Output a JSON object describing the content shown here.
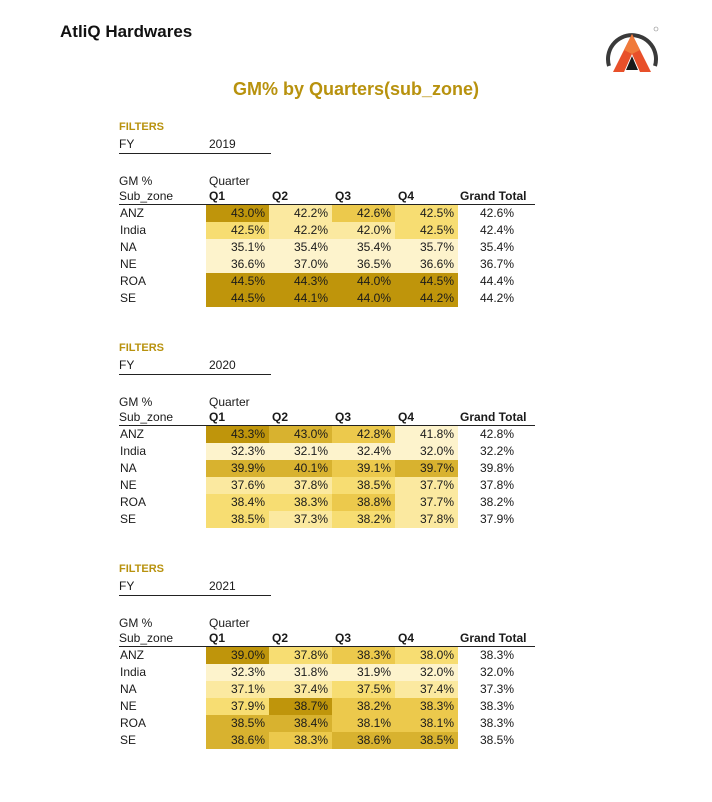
{
  "brand": "AtliQ Hardwares",
  "report_title": "GM% by Quarters(sub_zone)",
  "colors": {
    "accent": "#b8920e",
    "heat": [
      "#fdf3cc",
      "#fbe9a0",
      "#f7dd72",
      "#ecc94c",
      "#d8b22f",
      "#bf950b"
    ]
  },
  "labels": {
    "filters": "FILTERS",
    "fy": "FY",
    "gm": "GM %",
    "quarter": "Quarter",
    "sub_zone": "Sub_zone",
    "grand_total": "Grand Total",
    "quarters": [
      "Q1",
      "Q2",
      "Q3",
      "Q4"
    ]
  },
  "tables": [
    {
      "fy": "2019",
      "rows": [
        {
          "name": "ANZ",
          "q": [
            "43.0%",
            "42.2%",
            "42.6%",
            "42.5%"
          ],
          "shade": [
            5,
            1,
            3,
            2
          ],
          "total": "42.6%"
        },
        {
          "name": "India",
          "q": [
            "42.5%",
            "42.2%",
            "42.0%",
            "42.5%"
          ],
          "shade": [
            2,
            1,
            1,
            2
          ],
          "total": "42.4%"
        },
        {
          "name": "NA",
          "q": [
            "35.1%",
            "35.4%",
            "35.4%",
            "35.7%"
          ],
          "shade": [
            0,
            0,
            0,
            0
          ],
          "total": "35.4%"
        },
        {
          "name": "NE",
          "q": [
            "36.6%",
            "37.0%",
            "36.5%",
            "36.6%"
          ],
          "shade": [
            0,
            0,
            0,
            0
          ],
          "total": "36.7%"
        },
        {
          "name": "ROA",
          "q": [
            "44.5%",
            "44.3%",
            "44.0%",
            "44.5%"
          ],
          "shade": [
            5,
            5,
            5,
            5
          ],
          "total": "44.4%"
        },
        {
          "name": "SE",
          "q": [
            "44.5%",
            "44.1%",
            "44.0%",
            "44.2%"
          ],
          "shade": [
            5,
            5,
            5,
            5
          ],
          "total": "44.2%"
        }
      ]
    },
    {
      "fy": "2020",
      "rows": [
        {
          "name": "ANZ",
          "q": [
            "43.3%",
            "43.0%",
            "42.8%",
            "41.8%"
          ],
          "shade": [
            5,
            4,
            3,
            0
          ],
          "total": "42.8%"
        },
        {
          "name": "India",
          "q": [
            "32.3%",
            "32.1%",
            "32.4%",
            "32.0%"
          ],
          "shade": [
            0,
            0,
            0,
            0
          ],
          "total": "32.2%"
        },
        {
          "name": "NA",
          "q": [
            "39.9%",
            "40.1%",
            "39.1%",
            "39.7%"
          ],
          "shade": [
            4,
            4,
            3,
            4
          ],
          "total": "39.8%"
        },
        {
          "name": "NE",
          "q": [
            "37.6%",
            "37.8%",
            "38.5%",
            "37.7%"
          ],
          "shade": [
            1,
            1,
            2,
            1
          ],
          "total": "37.8%"
        },
        {
          "name": "ROA",
          "q": [
            "38.4%",
            "38.3%",
            "38.8%",
            "37.7%"
          ],
          "shade": [
            2,
            2,
            3,
            1
          ],
          "total": "38.2%"
        },
        {
          "name": "SE",
          "q": [
            "38.5%",
            "37.3%",
            "38.2%",
            "37.8%"
          ],
          "shade": [
            2,
            1,
            2,
            1
          ],
          "total": "37.9%"
        }
      ]
    },
    {
      "fy": "2021",
      "rows": [
        {
          "name": "ANZ",
          "q": [
            "39.0%",
            "37.8%",
            "38.3%",
            "38.0%"
          ],
          "shade": [
            5,
            2,
            3,
            2
          ],
          "total": "38.3%"
        },
        {
          "name": "India",
          "q": [
            "32.3%",
            "31.8%",
            "31.9%",
            "32.0%"
          ],
          "shade": [
            0,
            0,
            0,
            0
          ],
          "total": "32.0%"
        },
        {
          "name": "NA",
          "q": [
            "37.1%",
            "37.4%",
            "37.5%",
            "37.4%"
          ],
          "shade": [
            1,
            1,
            2,
            1
          ],
          "total": "37.3%"
        },
        {
          "name": "NE",
          "q": [
            "37.9%",
            "38.7%",
            "38.2%",
            "38.3%"
          ],
          "shade": [
            2,
            5,
            3,
            3
          ],
          "total": "38.3%"
        },
        {
          "name": "ROA",
          "q": [
            "38.5%",
            "38.4%",
            "38.1%",
            "38.1%"
          ],
          "shade": [
            4,
            4,
            3,
            3
          ],
          "total": "38.3%"
        },
        {
          "name": "SE",
          "q": [
            "38.6%",
            "38.3%",
            "38.6%",
            "38.5%"
          ],
          "shade": [
            4,
            3,
            4,
            4
          ],
          "total": "38.5%"
        }
      ]
    }
  ]
}
